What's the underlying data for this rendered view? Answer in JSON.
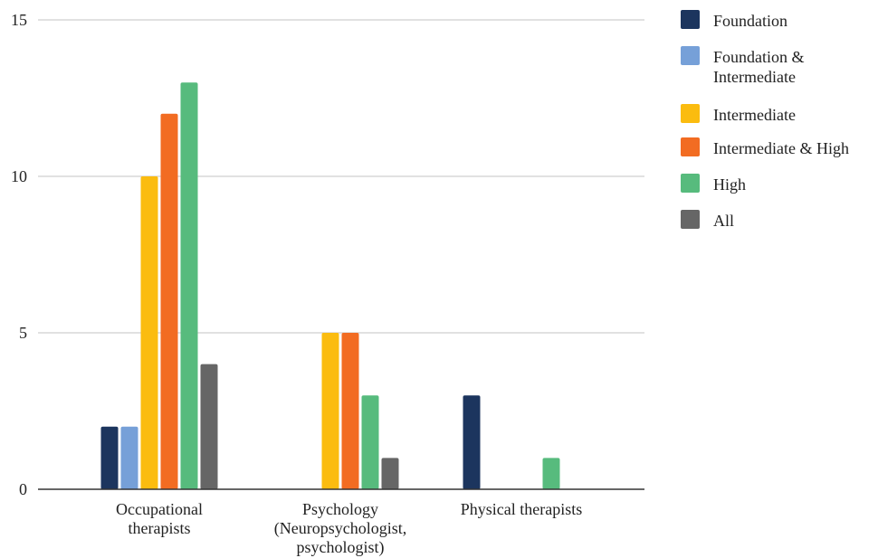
{
  "chart_data": {
    "type": "bar",
    "title": "",
    "xlabel": "",
    "ylabel": "",
    "ylim": [
      0,
      15
    ],
    "yticks": [
      0,
      5,
      10,
      15
    ],
    "grid": true,
    "legend_position": "right",
    "categories": [
      [
        "Occupational",
        "therapists"
      ],
      [
        "Psychology",
        "(Neuropsychologist,",
        "psychologist)"
      ],
      [
        "Physical therapists"
      ]
    ],
    "series": [
      {
        "name": "Foundation",
        "color": "#1c355e",
        "values": [
          2,
          0,
          3
        ]
      },
      {
        "name": "Foundation & Intermediate",
        "legend_lines": [
          "Foundation &",
          "Intermediate"
        ],
        "color": "#76a0d8",
        "values": [
          2,
          0,
          0
        ]
      },
      {
        "name": "Intermediate",
        "color": "#fbbc0f",
        "values": [
          10,
          5,
          0
        ]
      },
      {
        "name": "Intermediate & High",
        "color": "#f26c22",
        "values": [
          12,
          5,
          0
        ]
      },
      {
        "name": "High",
        "color": "#57bb7d",
        "values": [
          13,
          3,
          1
        ]
      },
      {
        "name": "All",
        "color": "#666666",
        "values": [
          4,
          1,
          0
        ]
      }
    ]
  }
}
